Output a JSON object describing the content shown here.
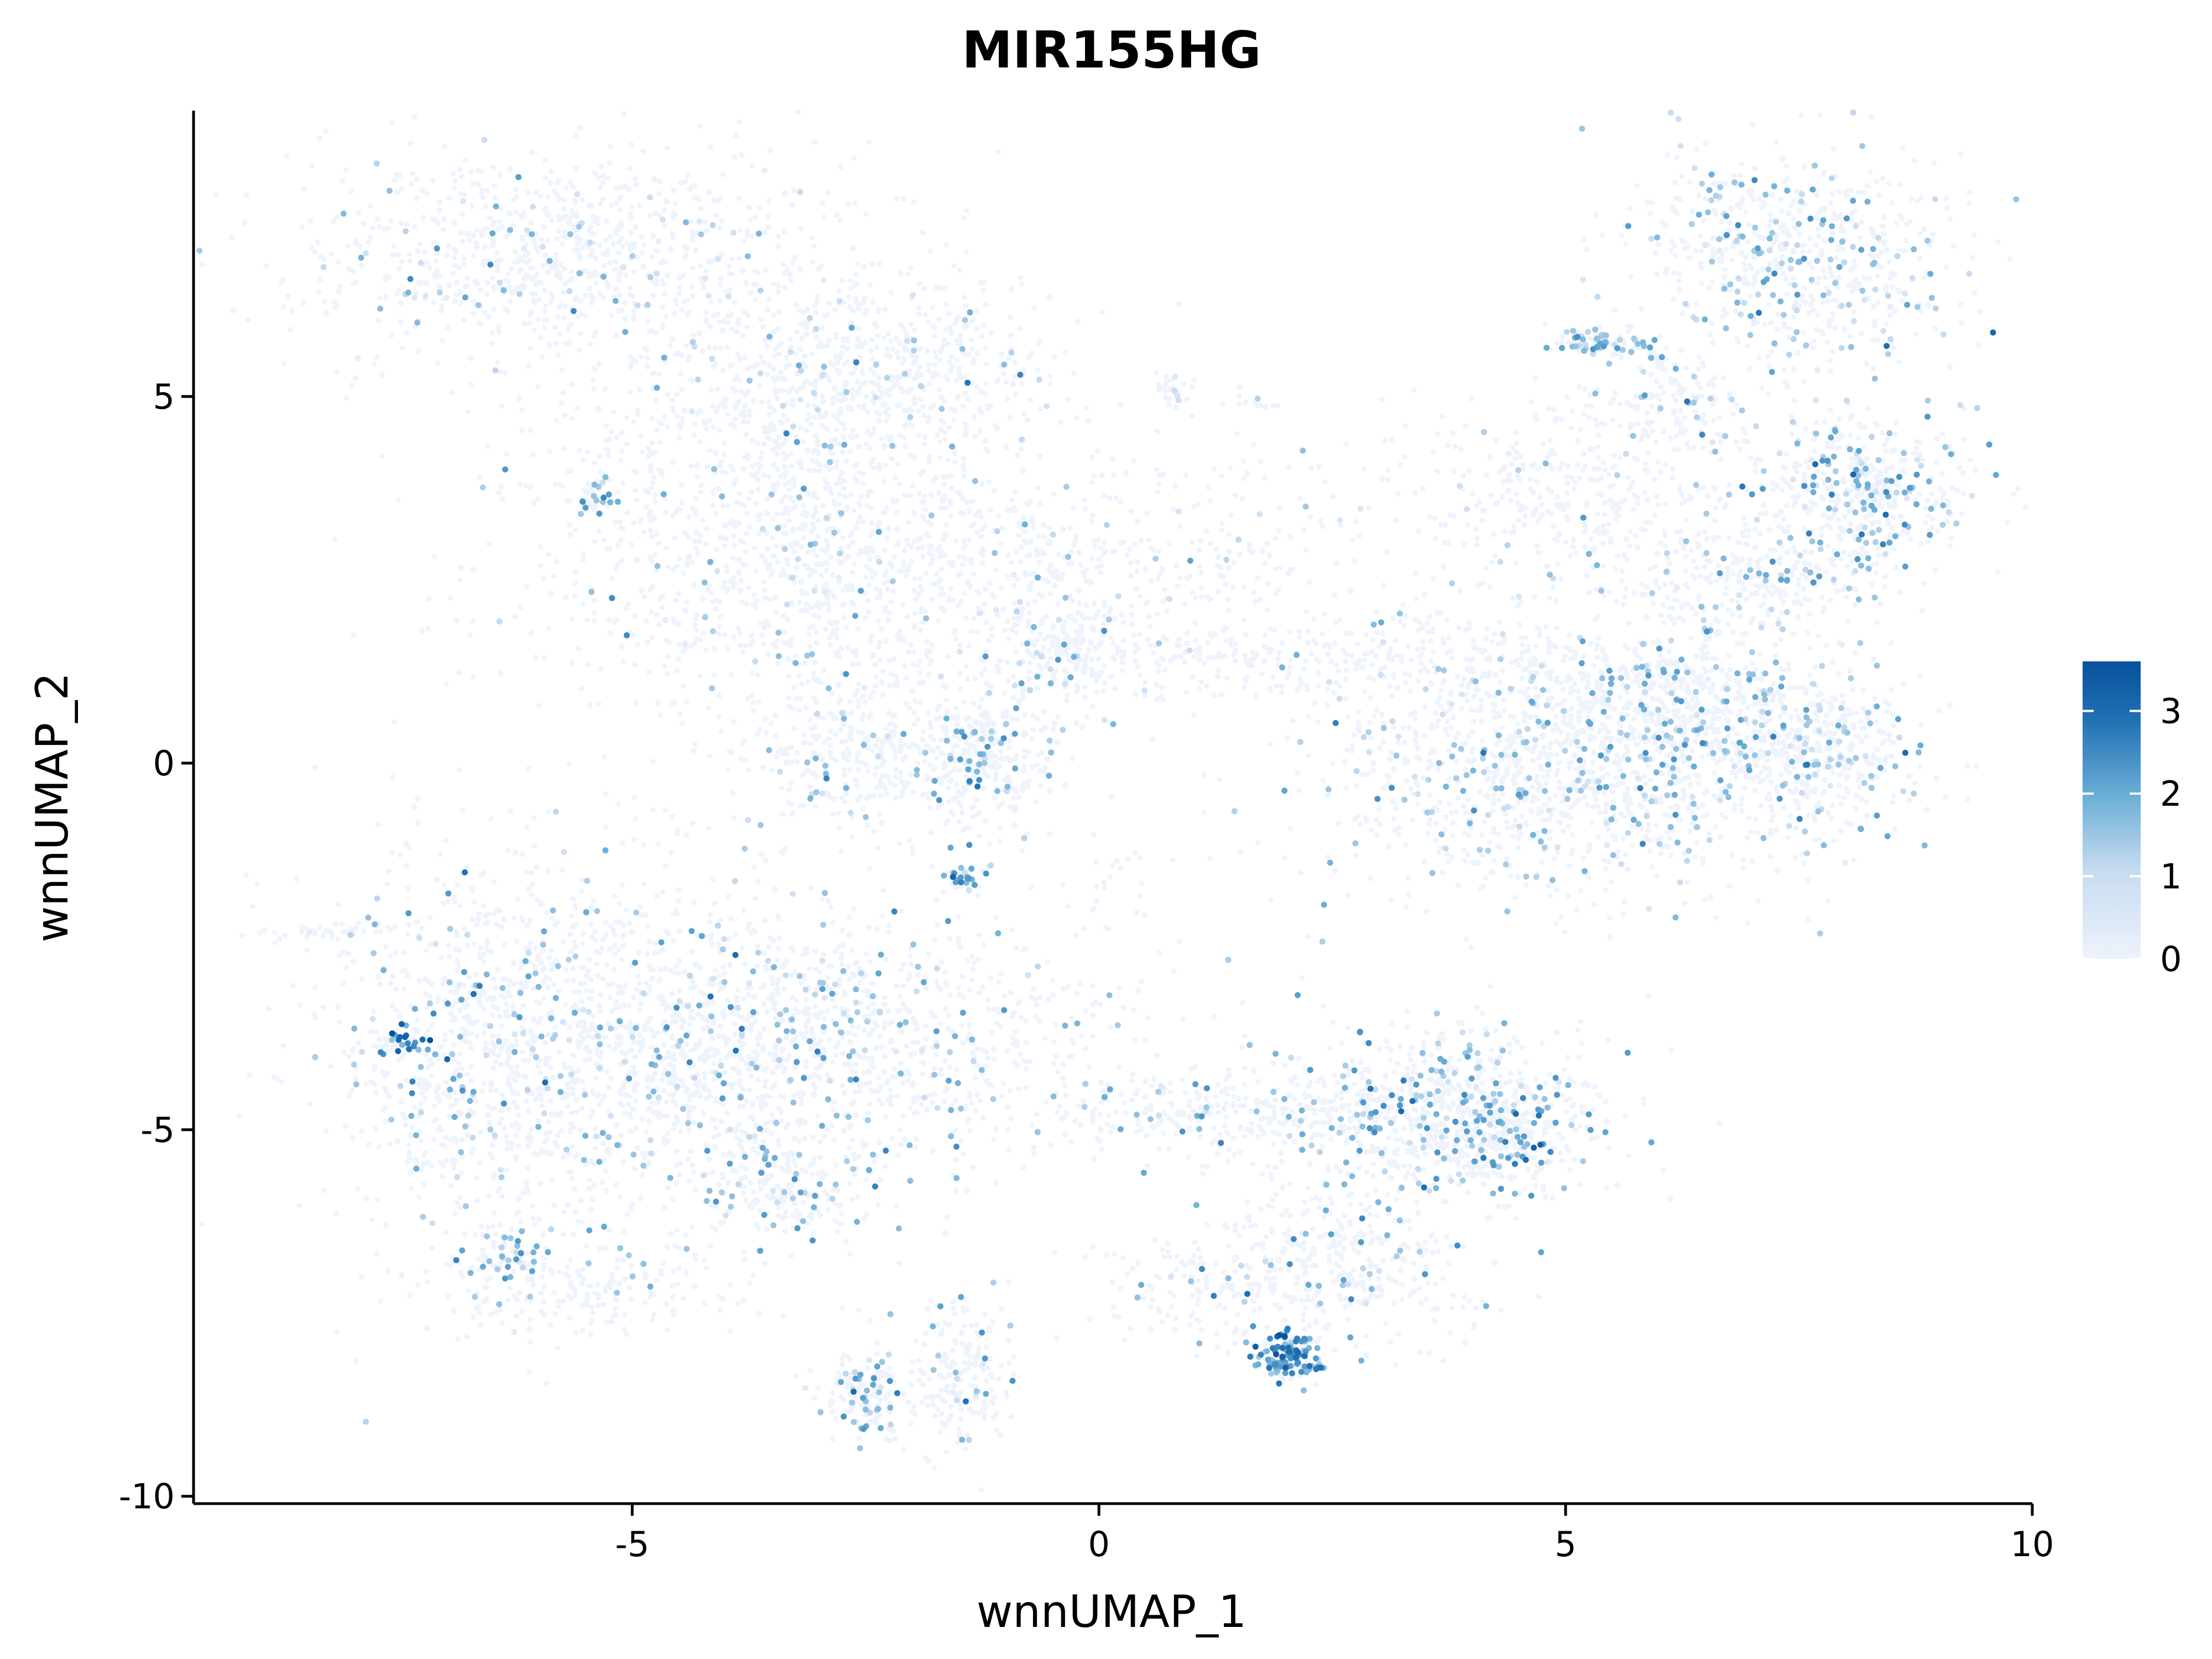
{
  "chart_data": {
    "type": "scatter",
    "title": "MIR155HG",
    "xlabel": "wnnUMAP_1",
    "ylabel": "wnnUMAP_2",
    "xlim": [
      -9.7,
      10
    ],
    "ylim": [
      -10.1,
      8.9
    ],
    "x_ticks": [
      -5,
      0,
      5,
      10
    ],
    "x_tick_labels": [
      "-5",
      "0",
      "5",
      "10"
    ],
    "y_ticks": [
      -10,
      -5,
      0,
      5
    ],
    "y_tick_labels": [
      "-10",
      "-5",
      "0",
      "5"
    ],
    "grid": false,
    "legend": {
      "position": "right",
      "type": "continuous colorbar",
      "range": [
        0,
        3.6
      ],
      "ticks": [
        0,
        1,
        2,
        3
      ],
      "tick_labels": [
        "0",
        "1",
        "2",
        "3"
      ],
      "colors": [
        "#eef3fc",
        "#9ecae1",
        "#4292c6",
        "#08519c"
      ]
    },
    "colors": {
      "low": "#eef3fc",
      "mid": "#9ecae1",
      "high": "#08519c"
    },
    "clusters": [
      {
        "cx": -5.6,
        "cy": 6.9,
        "sx": 1.5,
        "sy": 0.75,
        "n": 900,
        "p": 0.09,
        "tone": 1.3
      },
      {
        "cx": -3.4,
        "cy": 4.2,
        "sx": 1.3,
        "sy": 1.3,
        "n": 1000,
        "p": 0.06,
        "tone": 1.3
      },
      {
        "cx": -2.7,
        "cy": 2.1,
        "sx": 1.6,
        "sy": 0.9,
        "n": 700,
        "p": 0.06,
        "tone": 1.3
      },
      {
        "cx": -2.2,
        "cy": 5.4,
        "sx": 0.9,
        "sy": 0.6,
        "n": 400,
        "p": 0.1,
        "tone": 1.4
      },
      {
        "cx": -5.4,
        "cy": 3.6,
        "sx": 0.12,
        "sy": 0.12,
        "n": 40,
        "p": 0.5,
        "tone": 1.8
      },
      {
        "cx": -2.6,
        "cy": 0.1,
        "sx": 0.6,
        "sy": 0.5,
        "n": 300,
        "p": 0.08,
        "tone": 1.4
      },
      {
        "cx": -1.2,
        "cy": 0.1,
        "sx": 0.45,
        "sy": 0.45,
        "n": 300,
        "p": 0.18,
        "tone": 1.8
      },
      {
        "cx": -1.45,
        "cy": -1.55,
        "sx": 0.12,
        "sy": 0.1,
        "n": 40,
        "p": 0.5,
        "tone": 1.9
      },
      {
        "cx": -0.3,
        "cy": 1.5,
        "sx": 0.3,
        "sy": 0.3,
        "n": 150,
        "p": 0.15,
        "tone": 1.6
      },
      {
        "cx": -0.5,
        "cy": 2.6,
        "sx": 0.6,
        "sy": 0.5,
        "n": 150,
        "p": 0.05,
        "tone": 1.2
      },
      {
        "cx": 1.4,
        "cy": 2.6,
        "sx": 0.9,
        "sy": 0.9,
        "n": 200,
        "p": 0.06,
        "tone": 1.3
      },
      {
        "cx": 0.8,
        "cy": 5.1,
        "sx": 0.15,
        "sy": 0.1,
        "n": 25,
        "p": 0.1,
        "tone": 1.2
      },
      {
        "cx": 1.7,
        "cy": 4.9,
        "sx": 0.12,
        "sy": 0.05,
        "n": 12,
        "p": 0.1,
        "tone": 1.2
      },
      {
        "cx": 2.2,
        "cy": 1.4,
        "sx": 1.5,
        "sy": 0.25,
        "n": 250,
        "p": 0.03,
        "tone": 1.2
      },
      {
        "cx": 0.1,
        "cy": -1.6,
        "sx": 0.25,
        "sy": 0.4,
        "n": 20,
        "p": 0.1,
        "tone": 1.2
      },
      {
        "cx": 7.5,
        "cy": 6.9,
        "sx": 0.9,
        "sy": 0.75,
        "n": 650,
        "p": 0.25,
        "tone": 1.5
      },
      {
        "cx": 5.4,
        "cy": 5.75,
        "sx": 0.25,
        "sy": 0.1,
        "n": 90,
        "p": 0.45,
        "tone": 1.5
      },
      {
        "cx": 6.1,
        "cy": 4.9,
        "sx": 0.45,
        "sy": 0.4,
        "n": 150,
        "p": 0.2,
        "tone": 1.6
      },
      {
        "cx": 5.1,
        "cy": 3.7,
        "sx": 0.9,
        "sy": 0.6,
        "n": 350,
        "p": 0.05,
        "tone": 1.3
      },
      {
        "cx": 8.2,
        "cy": 3.7,
        "sx": 0.6,
        "sy": 0.5,
        "n": 450,
        "p": 0.3,
        "tone": 1.6
      },
      {
        "cx": 7.0,
        "cy": 2.5,
        "sx": 0.8,
        "sy": 0.4,
        "n": 300,
        "p": 0.12,
        "tone": 1.4
      },
      {
        "cx": 4.6,
        "cy": 1.2,
        "sx": 1.0,
        "sy": 0.6,
        "n": 300,
        "p": 0.06,
        "tone": 1.3
      },
      {
        "cx": 5.3,
        "cy": -0.2,
        "sx": 1.4,
        "sy": 0.75,
        "n": 1200,
        "p": 0.17,
        "tone": 1.5
      },
      {
        "cx": 6.2,
        "cy": 0.9,
        "sx": 0.5,
        "sy": 0.5,
        "n": 250,
        "p": 0.18,
        "tone": 1.6
      },
      {
        "cx": 7.6,
        "cy": 0.3,
        "sx": 0.55,
        "sy": 0.5,
        "n": 400,
        "p": 0.2,
        "tone": 1.5
      },
      {
        "cx": -6.2,
        "cy": -3.8,
        "sx": 1.1,
        "sy": 1.5,
        "n": 800,
        "p": 0.1,
        "tone": 1.5
      },
      {
        "cx": -3.6,
        "cy": -3.8,
        "sx": 1.8,
        "sy": 0.95,
        "n": 1700,
        "p": 0.14,
        "tone": 1.6
      },
      {
        "cx": -3.5,
        "cy": -5.8,
        "sx": 0.45,
        "sy": 0.35,
        "n": 200,
        "p": 0.2,
        "tone": 1.7
      },
      {
        "cx": -6.3,
        "cy": -6.7,
        "sx": 0.25,
        "sy": 0.2,
        "n": 60,
        "p": 0.4,
        "tone": 1.7
      },
      {
        "cx": -5.5,
        "cy": -7.2,
        "sx": 0.9,
        "sy": 0.35,
        "n": 200,
        "p": 0.07,
        "tone": 1.4
      },
      {
        "cx": -7.5,
        "cy": -3.8,
        "sx": 0.12,
        "sy": 0.1,
        "n": 40,
        "p": 0.6,
        "tone": 2.7
      },
      {
        "cx": -7.1,
        "cy": -4.6,
        "sx": 0.3,
        "sy": 0.7,
        "n": 90,
        "p": 0.3,
        "tone": 1.9
      },
      {
        "cx": -8.2,
        "cy": -2.3,
        "sx": 0.4,
        "sy": 0.05,
        "n": 40,
        "p": 0.05,
        "tone": 1.2
      },
      {
        "cx": -2.5,
        "cy": -8.6,
        "sx": 0.25,
        "sy": 0.3,
        "n": 150,
        "p": 0.25,
        "tone": 1.7
      },
      {
        "cx": -1.5,
        "cy": -8.3,
        "sx": 0.3,
        "sy": 0.55,
        "n": 200,
        "p": 0.12,
        "tone": 1.5
      },
      {
        "cx": 3.8,
        "cy": -4.8,
        "sx": 0.8,
        "sy": 0.6,
        "n": 700,
        "p": 0.22,
        "tone": 1.7
      },
      {
        "cx": 4.3,
        "cy": -5.1,
        "sx": 0.3,
        "sy": 0.3,
        "n": 150,
        "p": 0.3,
        "tone": 1.9
      },
      {
        "cx": 1.6,
        "cy": -4.8,
        "sx": 1.2,
        "sy": 0.3,
        "n": 350,
        "p": 0.08,
        "tone": 1.5
      },
      {
        "cx": 2.6,
        "cy": -6.8,
        "sx": 0.7,
        "sy": 0.6,
        "n": 350,
        "p": 0.12,
        "tone": 1.6
      },
      {
        "cx": 2.0,
        "cy": -8.1,
        "sx": 0.2,
        "sy": 0.18,
        "n": 150,
        "p": 0.75,
        "tone": 2.2
      },
      {
        "cx": 1.2,
        "cy": -7.2,
        "sx": 0.7,
        "sy": 0.35,
        "n": 150,
        "p": 0.08,
        "tone": 1.5
      }
    ]
  }
}
